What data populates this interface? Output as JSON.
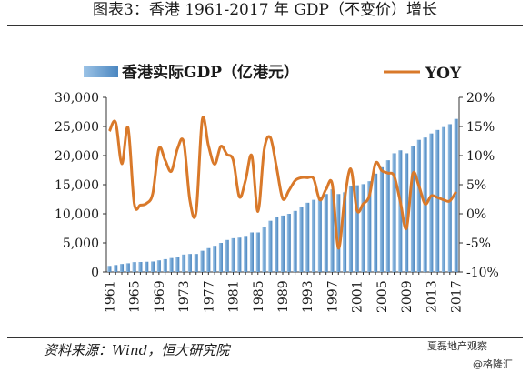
{
  "title": "图表3：香港 1961-2017 年 GDP（不变价）增长",
  "source": "资料来源：Wind，恒大研究院",
  "watermark": {
    "line1": "夏磊地产观察",
    "line2": "@格隆汇"
  },
  "colors": {
    "bar": "#5b9bd5",
    "line": "#d9792a",
    "text": "#1a1a1a"
  },
  "chart_data": {
    "type": "bar+line",
    "years": [
      1961,
      1962,
      1963,
      1964,
      1965,
      1966,
      1967,
      1968,
      1969,
      1970,
      1971,
      1972,
      1973,
      1974,
      1975,
      1976,
      1977,
      1978,
      1979,
      1980,
      1981,
      1982,
      1983,
      1984,
      1985,
      1986,
      1987,
      1988,
      1989,
      1990,
      1991,
      1992,
      1993,
      1994,
      1995,
      1996,
      1997,
      1998,
      1999,
      2000,
      2001,
      2002,
      2003,
      2004,
      2005,
      2006,
      2007,
      2008,
      2009,
      2010,
      2011,
      2012,
      2013,
      2014,
      2015,
      2016,
      2017
    ],
    "x_tick_labels": [
      "1961",
      "1965",
      "1969",
      "1973",
      "1977",
      "1981",
      "1985",
      "1989",
      "1993",
      "1997",
      "2001",
      "2005",
      "2009",
      "2013",
      "2017"
    ],
    "series": [
      {
        "name": "香港实际GDP（亿港元）",
        "axis": "left",
        "kind": "bar",
        "values": [
          1050,
          1200,
          1380,
          1500,
          1700,
          1720,
          1760,
          1800,
          2000,
          2200,
          2400,
          2650,
          3000,
          3100,
          3100,
          3650,
          4100,
          4500,
          5000,
          5500,
          5800,
          5900,
          6200,
          6800,
          6800,
          7800,
          8800,
          9500,
          9700,
          10000,
          10500,
          11200,
          11900,
          12400,
          12850,
          13400,
          14200,
          13400,
          13700,
          14800,
          14900,
          15100,
          15600,
          16900,
          18000,
          19200,
          20400,
          20900,
          20400,
          21700,
          22700,
          23100,
          23800,
          24400,
          24900,
          25400,
          26300
        ]
      },
      {
        "name": "YOY",
        "axis": "right",
        "kind": "line",
        "values": [
          14.2,
          15.7,
          8.6,
          14.8,
          1.8,
          1.5,
          1.8,
          3.5,
          11.2,
          9.2,
          7.3,
          11.2,
          12.3,
          2.3,
          0.3,
          16.2,
          11.7,
          8.5,
          11.6,
          10.2,
          9.2,
          2.9,
          5.8,
          10.0,
          0.4,
          11.0,
          13.1,
          8.0,
          2.6,
          4.0,
          5.7,
          6.2,
          6.2,
          6.0,
          2.4,
          4.2,
          5.1,
          -5.9,
          2.5,
          7.7,
          0.6,
          1.7,
          3.1,
          8.7,
          7.4,
          7.0,
          6.5,
          2.1,
          -2.5,
          6.8,
          4.8,
          1.7,
          3.1,
          2.8,
          2.4,
          2.2,
          3.8
        ]
      }
    ],
    "y_left": {
      "ticks": [
        "0",
        "5,000",
        "10,000",
        "15,000",
        "20,000",
        "25,000",
        "30,000"
      ],
      "range": [
        0,
        30000
      ]
    },
    "y_right": {
      "ticks": [
        "-10%",
        "-5%",
        "0%",
        "5%",
        "10%",
        "15%",
        "20%"
      ],
      "range": [
        -10,
        20
      ]
    },
    "legend": {
      "bar_label": "香港实际GDP（亿港元）",
      "line_label": "YOY",
      "placement": "top"
    }
  }
}
